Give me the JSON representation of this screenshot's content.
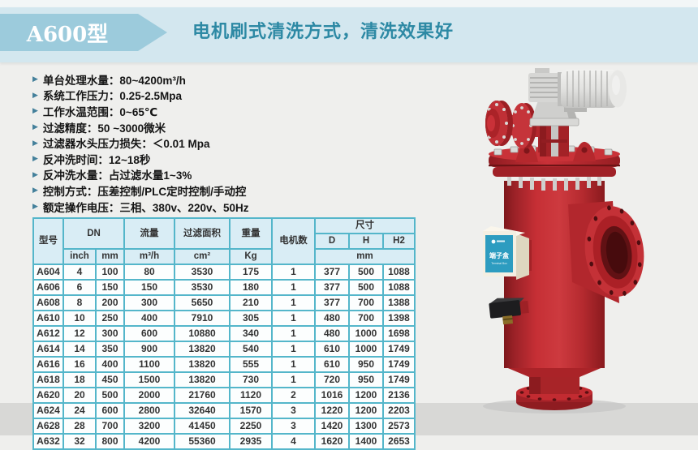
{
  "header": {
    "badge": "A600型",
    "title": "电机刷式清洗方式，清洗效果好",
    "banner_color": "#d3e7ef",
    "badge_color": "#9ccbdc",
    "title_color": "#2d89a4"
  },
  "specs": {
    "bullet_icon": "▶",
    "items": [
      "单台处理水量：80~4200m³/h",
      "系统工作压力：0.25-2.5Mpa",
      "工作水温范围：0~65℃",
      "过滤精度：50 ~3000微米",
      "过滤器水头压力损失：＜0.01 Mpa",
      "反冲洗时间：12~18秒",
      "反冲洗水量：占过滤水量1~3%",
      "控制方式：压差控制/PLC定时控制/手动控",
      "额定操作电压：三相、380v、220v、50Hz"
    ]
  },
  "table": {
    "border_color": "#54b6ca",
    "header_bg": "#d9edf5",
    "headers": {
      "model": "型号",
      "dn": "DN",
      "dn_inch": "inch",
      "dn_mm": "mm",
      "flow": "流量",
      "flow_unit": "m³/h",
      "filter_area": "过滤面积",
      "filter_area_unit": "cm²",
      "weight": "重量",
      "weight_unit": "Kg",
      "motor_count": "电机数",
      "dims": "尺寸",
      "dim_d": "D",
      "dim_h": "H",
      "dim_h2": "H2",
      "dims_unit": "mm"
    },
    "rows": [
      [
        "A604",
        "4",
        "100",
        "80",
        "3530",
        "175",
        "1",
        "377",
        "500",
        "1088"
      ],
      [
        "A606",
        "6",
        "150",
        "150",
        "3530",
        "180",
        "1",
        "377",
        "500",
        "1088"
      ],
      [
        "A608",
        "8",
        "200",
        "300",
        "5650",
        "210",
        "1",
        "377",
        "700",
        "1388"
      ],
      [
        "A610",
        "10",
        "250",
        "400",
        "7910",
        "305",
        "1",
        "480",
        "700",
        "1398"
      ],
      [
        "A612",
        "12",
        "300",
        "600",
        "10880",
        "340",
        "1",
        "480",
        "1000",
        "1698"
      ],
      [
        "A614",
        "14",
        "350",
        "900",
        "13820",
        "540",
        "1",
        "610",
        "1000",
        "1749"
      ],
      [
        "A616",
        "16",
        "400",
        "1100",
        "13820",
        "555",
        "1",
        "610",
        "950",
        "1749"
      ],
      [
        "A618",
        "18",
        "450",
        "1500",
        "13820",
        "730",
        "1",
        "720",
        "950",
        "1749"
      ],
      [
        "A620",
        "20",
        "500",
        "2000",
        "21760",
        "1120",
        "2",
        "1016",
        "1200",
        "2136"
      ],
      [
        "A624",
        "24",
        "600",
        "2800",
        "32640",
        "1570",
        "3",
        "1220",
        "1200",
        "2203"
      ],
      [
        "A628",
        "28",
        "700",
        "3200",
        "41450",
        "2250",
        "3",
        "1420",
        "1300",
        "2573"
      ],
      [
        "A632",
        "32",
        "800",
        "4200",
        "55360",
        "2935",
        "4",
        "1620",
        "1400",
        "2653"
      ]
    ]
  },
  "product": {
    "label_title": "端子盒",
    "label_subtitle": "Terminal Box",
    "body_color": "#bf2a2f"
  }
}
